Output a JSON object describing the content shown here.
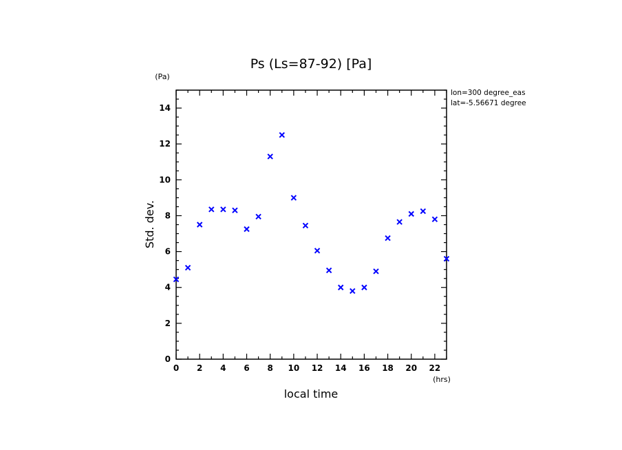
{
  "chart_data": {
    "type": "scatter",
    "title": "Ps (Ls=87-92) [Pa]",
    "xlabel": "local time",
    "ylabel": "Std. dev.",
    "x_unit": "(hrs)",
    "y_unit": "(Pa)",
    "annotations": [
      "lon=300 degree_eas",
      "lat=-5.56671 degree"
    ],
    "xlim": [
      0,
      23
    ],
    "ylim": [
      0,
      15
    ],
    "x_ticks": [
      0,
      2,
      4,
      6,
      8,
      10,
      12,
      14,
      16,
      18,
      20,
      22
    ],
    "y_ticks": [
      0,
      2,
      4,
      6,
      8,
      10,
      12,
      14
    ],
    "marker": "x",
    "marker_color": "#0000ff",
    "grid": false,
    "series": [
      {
        "x": [
          0,
          1,
          2,
          3,
          4,
          5,
          6,
          7,
          8,
          9,
          10,
          11,
          12,
          13,
          14,
          15,
          16,
          17,
          18,
          19,
          20,
          21,
          22,
          23
        ],
        "values": [
          4.45,
          5.1,
          7.5,
          8.35,
          8.35,
          8.3,
          7.25,
          7.95,
          11.3,
          12.5,
          9.0,
          7.45,
          6.05,
          4.95,
          4.0,
          3.8,
          4.0,
          4.9,
          6.75,
          7.65,
          8.1,
          8.25,
          7.8,
          5.6
        ]
      }
    ]
  }
}
